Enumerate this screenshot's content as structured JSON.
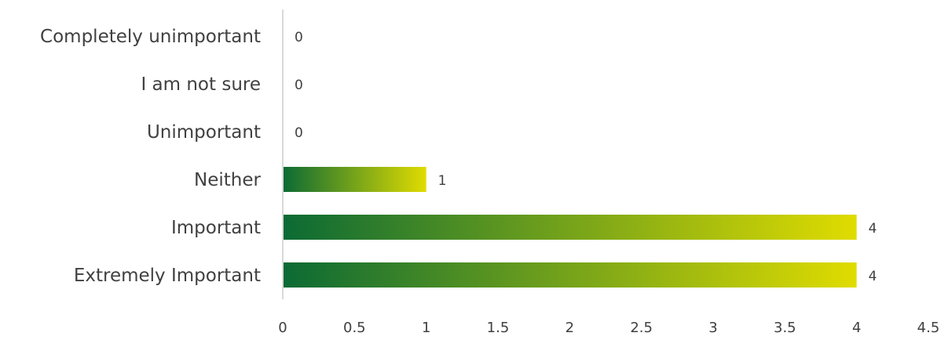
{
  "chart_data": {
    "type": "bar",
    "orientation": "horizontal",
    "categories": [
      "Completely unimportant",
      "I am not sure",
      "Unimportant",
      "Neither",
      "Important",
      "Extremely Important"
    ],
    "values": [
      0,
      0,
      0,
      1,
      4,
      4
    ],
    "data_labels": [
      "0",
      "0",
      "0",
      "1",
      "4",
      "4"
    ],
    "title": "",
    "xlabel": "",
    "ylabel": "",
    "xlim": [
      0,
      4.5
    ],
    "x_ticks": [
      "0",
      "0.5",
      "1",
      "1.5",
      "2",
      "2.5",
      "3",
      "3.5",
      "4",
      "4.5"
    ],
    "grid": false,
    "legend": "none",
    "colors": {
      "bar_gradient_start": "#0b6a34",
      "bar_gradient_end": "#e0dc00",
      "axis_line": "#d9d9d9",
      "text": "#404040"
    }
  }
}
